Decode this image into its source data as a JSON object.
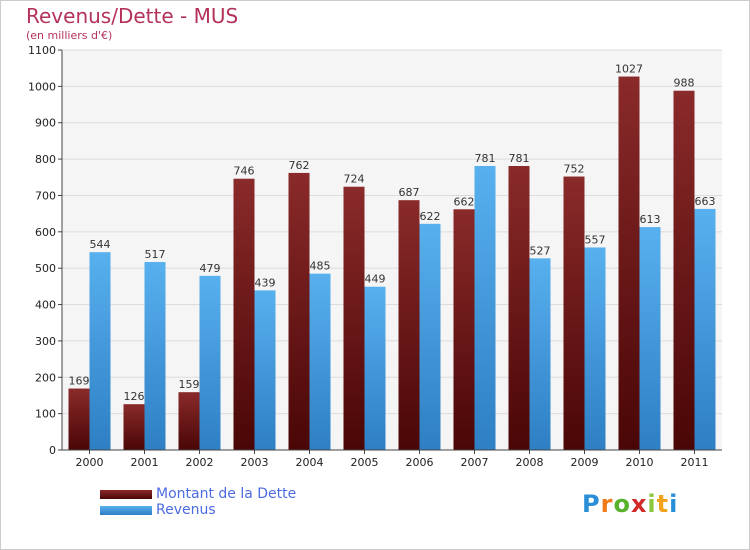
{
  "chart_data": {
    "type": "bar",
    "title": "Revenus/Dette - MUS",
    "subtitle": "(en milliers d'€)",
    "categories": [
      "2000",
      "2001",
      "2002",
      "2003",
      "2004",
      "2005",
      "2006",
      "2007",
      "2008",
      "2009",
      "2010",
      "2011"
    ],
    "series": [
      {
        "name": "Montant de la Dette",
        "color": "#7a1e1e",
        "values": [
          169,
          126,
          159,
          746,
          762,
          724,
          687,
          662,
          781,
          752,
          1027,
          988
        ]
      },
      {
        "name": "Revenus",
        "color": "#4aa3e6",
        "values": [
          544,
          517,
          479,
          439,
          485,
          449,
          622,
          781,
          527,
          557,
          613,
          663
        ]
      }
    ],
    "ylim": [
      0,
      1100
    ],
    "yticks": [
      0,
      100,
      200,
      300,
      400,
      500,
      600,
      700,
      800,
      900,
      1000,
      1100
    ],
    "grid": true,
    "legend_position": "bottom-left"
  },
  "brand": {
    "letters": [
      "P",
      "r",
      "o",
      "x",
      "i",
      "t",
      "i"
    ],
    "colors": [
      "#2a8fd6",
      "#f07b1a",
      "#58b22e",
      "#d12a2a",
      "#8dc63f",
      "#f0a21a",
      "#2a8fd6"
    ]
  }
}
